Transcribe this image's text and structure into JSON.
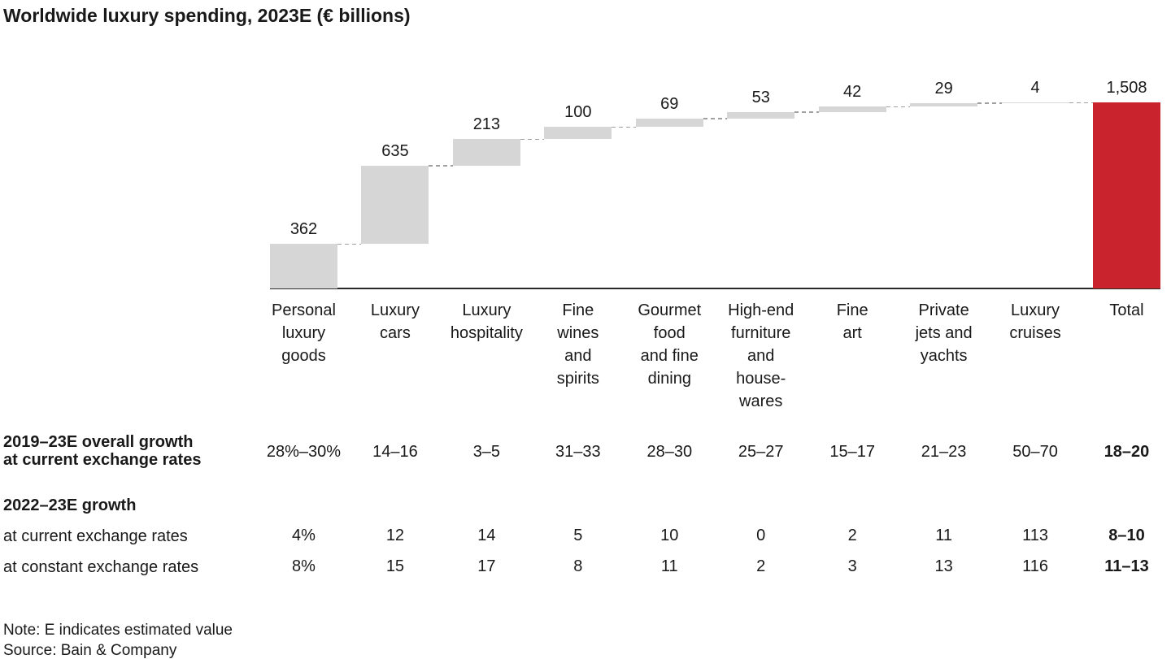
{
  "title": "Worldwide luxury spending, 2023E (€ billions)",
  "chart_data": {
    "type": "bar",
    "subtype": "waterfall",
    "title": "Worldwide luxury spending, 2023E (€ billions)",
    "unit": "€ billions",
    "categories": [
      "Personal luxury goods",
      "Luxury cars",
      "Luxury hospitality",
      "Fine wines and spirits",
      "Gourmet food and fine dining",
      "High-end furniture and house-wares",
      "Fine art",
      "Private jets and yachts",
      "Luxury cruises",
      "Total"
    ],
    "category_label_lines": [
      [
        "Personal",
        "luxury",
        "goods"
      ],
      [
        "Luxury",
        "cars"
      ],
      [
        "Luxury",
        "hospitality"
      ],
      [
        "Fine",
        "wines",
        "and",
        "spirits"
      ],
      [
        "Gourmet",
        "food",
        "and fine",
        "dining"
      ],
      [
        "High-end",
        "furniture",
        "and",
        "house-",
        "wares"
      ],
      [
        "Fine",
        "art"
      ],
      [
        "Private",
        "jets and",
        "yachts"
      ],
      [
        "Luxury",
        "cruises"
      ],
      [
        "Total"
      ]
    ],
    "values": [
      362,
      635,
      213,
      100,
      69,
      53,
      42,
      29,
      4,
      1508
    ],
    "value_labels": [
      "362",
      "635",
      "213",
      "100",
      "69",
      "53",
      "42",
      "29",
      "4",
      "1,508"
    ],
    "total_index": 9,
    "ylim": [
      0,
      1508
    ],
    "grid": "off",
    "legend": "none",
    "bar_color": "#d6d6d6",
    "total_color": "#c9242e",
    "connector_color": "#a0a0a0"
  },
  "table": {
    "rows": [
      {
        "id": "overall-growth",
        "label_lines": [
          "2019–23E overall growth",
          "at current exchange rates"
        ],
        "label_bold": true,
        "values": [
          "28%–30%",
          "14–16",
          "3–5",
          "31–33",
          "28–30",
          "25–27",
          "15–17",
          "21–23",
          "50–70",
          "18–20"
        ],
        "bold_last": true
      },
      {
        "id": "growth-2022-header",
        "label_lines": [
          "2022–23E growth"
        ],
        "label_bold": true,
        "values": []
      },
      {
        "id": "current-rates",
        "label_lines": [
          "at current exchange rates"
        ],
        "label_bold": false,
        "values": [
          "4%",
          "12",
          "14",
          "5",
          "10",
          "0",
          "2",
          "11",
          "113",
          "8–10"
        ],
        "bold_last": true
      },
      {
        "id": "constant-rates",
        "label_lines": [
          "at constant exchange rates"
        ],
        "label_bold": false,
        "values": [
          "8%",
          "15",
          "17",
          "8",
          "11",
          "2",
          "3",
          "13",
          "116",
          "11–13"
        ],
        "bold_last": true
      }
    ]
  },
  "footer": {
    "note": "Note: E indicates estimated value",
    "source": "Source: Bain & Company"
  }
}
